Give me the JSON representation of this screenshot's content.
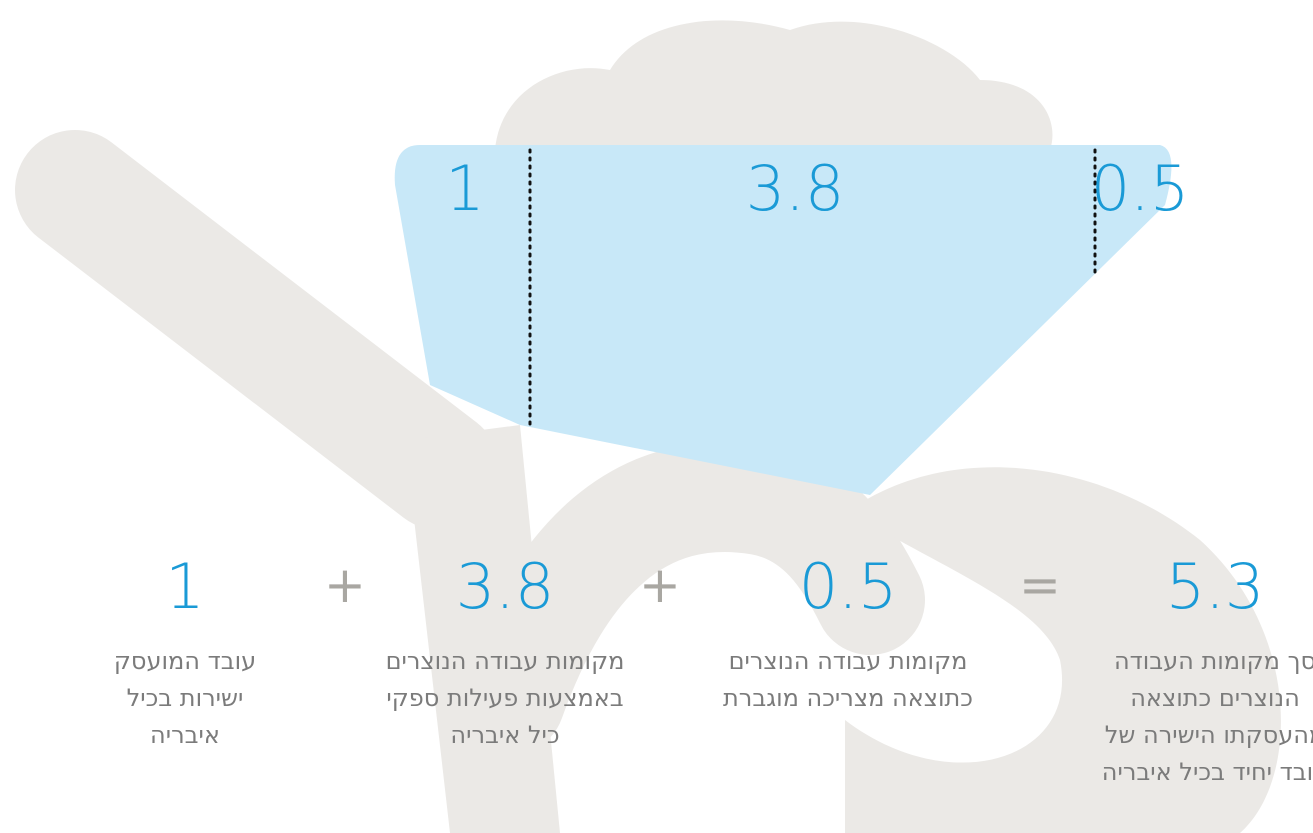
{
  "bucket": {
    "segments": [
      "1",
      "3.8",
      "0.5"
    ]
  },
  "equation": {
    "terms": [
      {
        "value": "1",
        "caption": [
          "עובד המועסק",
          "ישירות בכיל",
          "איבריה"
        ]
      },
      {
        "value": "3.8",
        "caption": [
          "מקומות עבודה הנוצרים",
          "באמצעות פעילות ספקי",
          "כיל איבריה"
        ]
      },
      {
        "value": "0.5",
        "caption": [
          "מקומות עבודה הנוצרים",
          "כתוצאה מצריכה מוגברת"
        ]
      },
      {
        "value": "5.3",
        "caption": [
          "סך מקומות העבודה",
          "הנוצרים כתוצאה",
          "מהעסקתו הישירה של",
          "עובד יחיד בכיל איבריה"
        ]
      }
    ],
    "operators": [
      "+",
      "+",
      "="
    ]
  }
}
